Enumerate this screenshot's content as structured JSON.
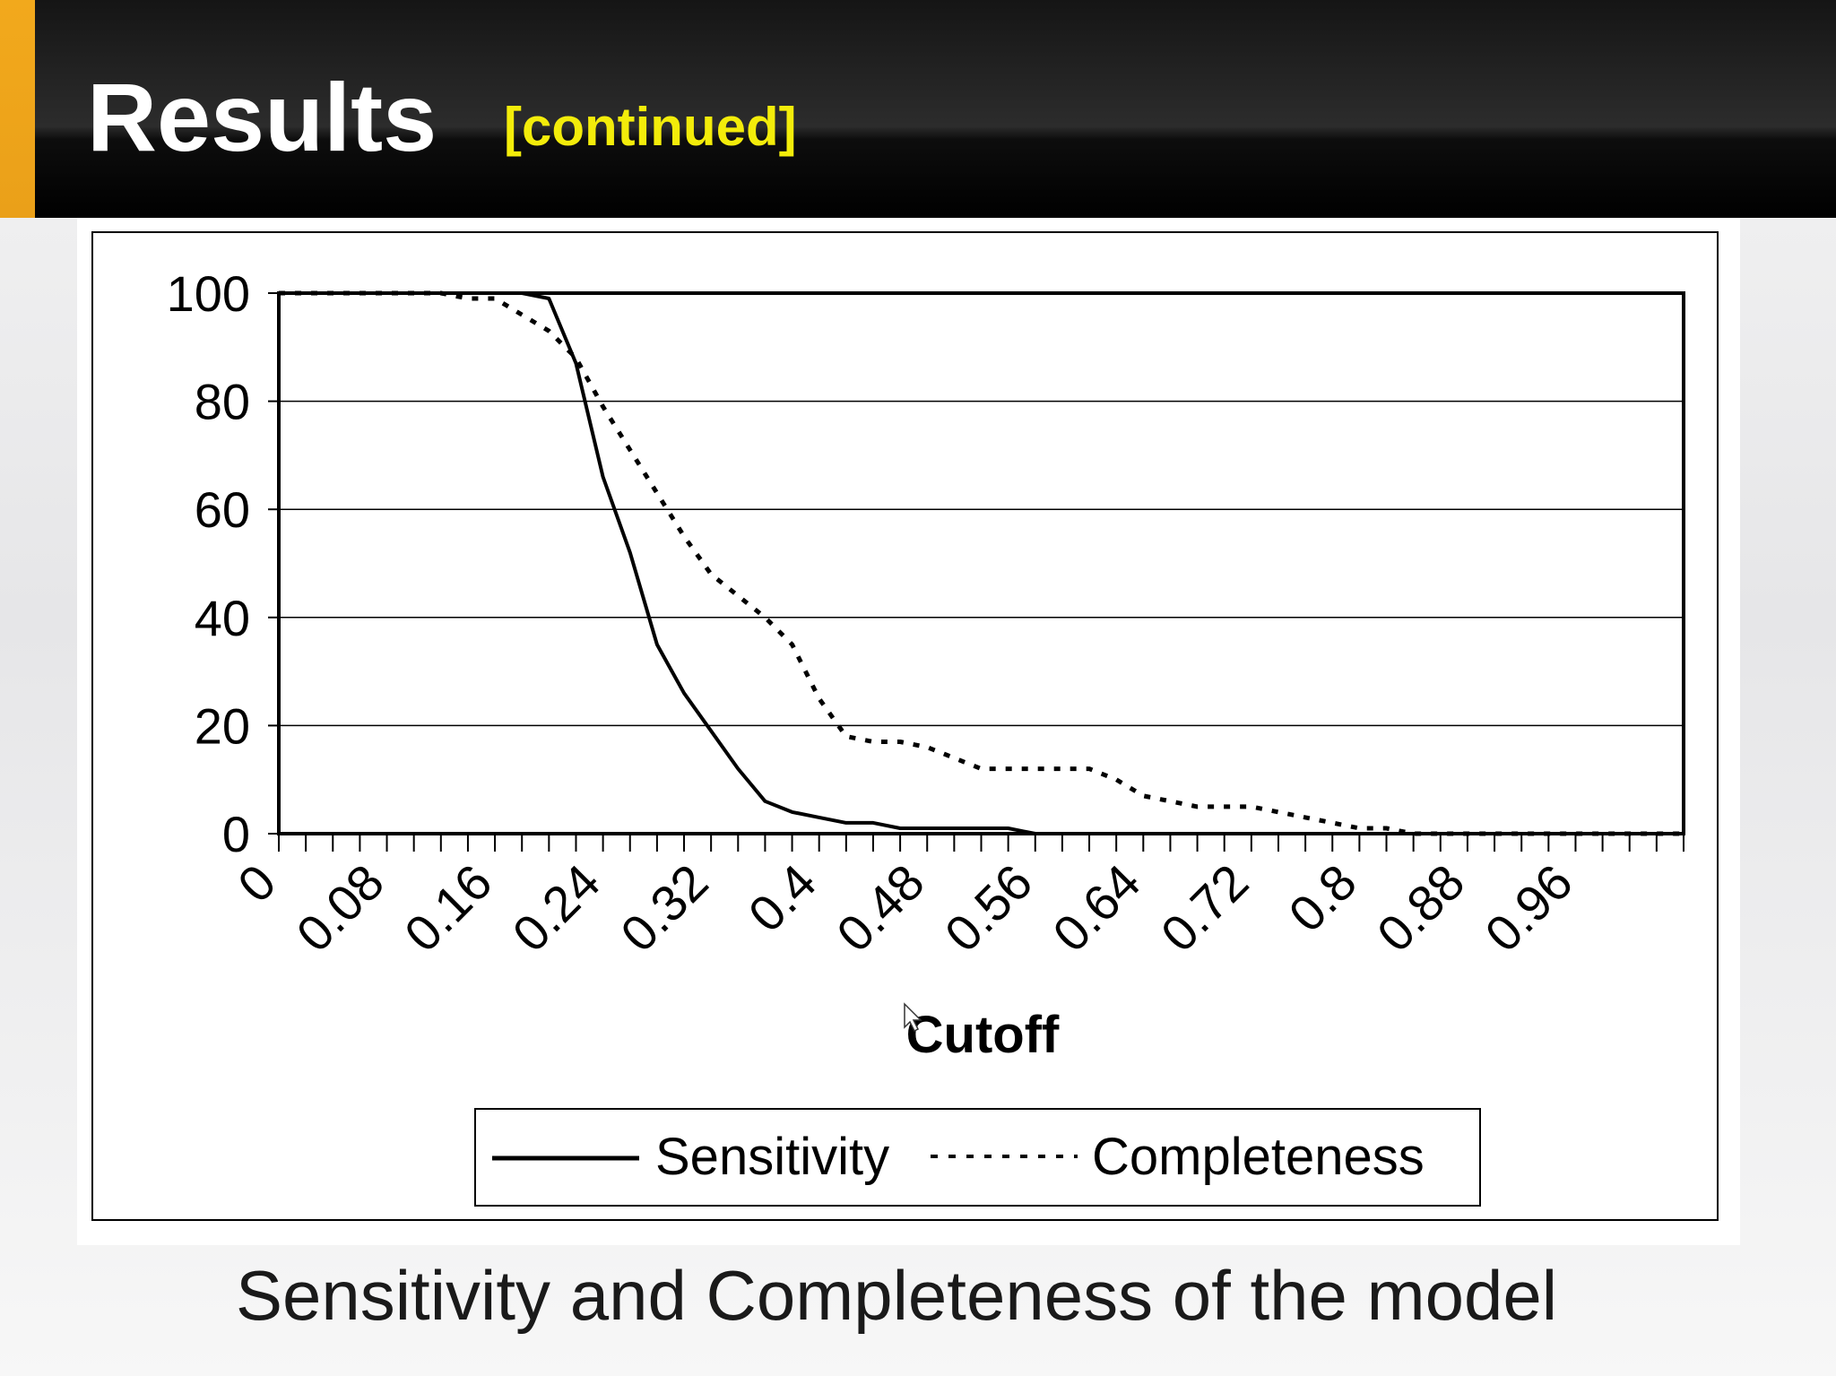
{
  "slide": {
    "title": "Results",
    "subtitle": "[continued]",
    "caption": "Sensitivity and Completeness of the model"
  },
  "colors": {
    "accent": "#f2a91c",
    "subtitle": "#f3ec0a",
    "title_bar": "#000000"
  },
  "chart_data": {
    "type": "line",
    "xlabel": "Cutoff",
    "ylabel": "",
    "ylim": [
      0,
      100
    ],
    "xlim": [
      0,
      1.04
    ],
    "yticks": [
      "0",
      "20",
      "40",
      "60",
      "80",
      "100"
    ],
    "xtick_labels": [
      "0",
      "0.08",
      "0.16",
      "0.24",
      "0.32",
      "0.4",
      "0.48",
      "0.56",
      "0.64",
      "0.72",
      "0.8",
      "0.88",
      "0.96"
    ],
    "grid": true,
    "legend": "bottom",
    "x": [
      0,
      0.02,
      0.04,
      0.06,
      0.08,
      0.1,
      0.12,
      0.14,
      0.16,
      0.18,
      0.2,
      0.22,
      0.24,
      0.26,
      0.28,
      0.3,
      0.32,
      0.34,
      0.36,
      0.38,
      0.4,
      0.42,
      0.44,
      0.46,
      0.48,
      0.5,
      0.52,
      0.54,
      0.56,
      0.58,
      0.6,
      0.62,
      0.64,
      0.66,
      0.68,
      0.7,
      0.72,
      0.74,
      0.76,
      0.78,
      0.8,
      0.82,
      0.84,
      0.86,
      0.88,
      0.9,
      0.92,
      0.94,
      0.96,
      0.98,
      1.0,
      1.02,
      1.04
    ],
    "series": [
      {
        "name": "Sensitivity",
        "style": "solid",
        "values": [
          100,
          100,
          100,
          100,
          100,
          100,
          100,
          100,
          100,
          100,
          99,
          87,
          66,
          52,
          35,
          26,
          19,
          12,
          6,
          4,
          3,
          2,
          2,
          1,
          1,
          1,
          1,
          1,
          0,
          0,
          0,
          0,
          0,
          0,
          0,
          0,
          0,
          0,
          0,
          0,
          0,
          0,
          0,
          0,
          0,
          0,
          0,
          0,
          0,
          0,
          0,
          0,
          0
        ]
      },
      {
        "name": "Completeness",
        "style": "dotted",
        "values": [
          100,
          100,
          100,
          100,
          100,
          100,
          100,
          99,
          99,
          96,
          93,
          88,
          79,
          71,
          63,
          55,
          48,
          44,
          40,
          35,
          25,
          18,
          17,
          17,
          16,
          14,
          12,
          12,
          12,
          12,
          12,
          10,
          7,
          6,
          5,
          5,
          5,
          4,
          3,
          2,
          1,
          1,
          0,
          0,
          0,
          0,
          0,
          0,
          0,
          0,
          0,
          0,
          0
        ]
      }
    ]
  }
}
